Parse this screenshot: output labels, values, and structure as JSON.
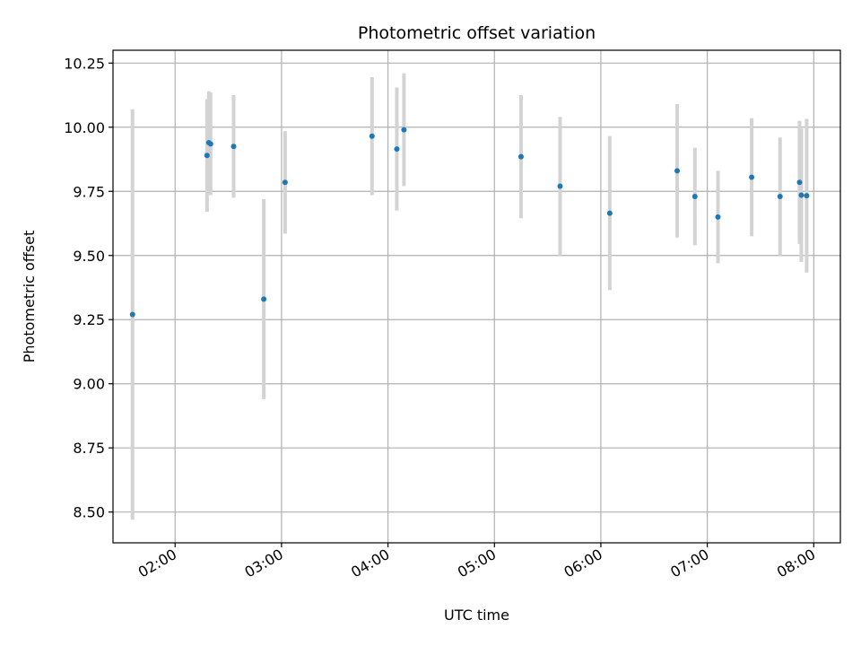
{
  "chart_data": {
    "type": "scatter",
    "title": "Photometric offset variation",
    "xlabel": "UTC time",
    "ylabel": "Photometric offset",
    "x_ticks": [
      "02:00",
      "03:00",
      "04:00",
      "05:00",
      "06:00",
      "07:00",
      "08:00"
    ],
    "y_ticks": [
      "8.50",
      "8.75",
      "9.00",
      "9.25",
      "9.50",
      "9.75",
      "10.00",
      "10.25"
    ],
    "xlim": [
      "01:25",
      "08:15"
    ],
    "ylim": [
      8.38,
      10.3
    ],
    "grid": true,
    "colors": {
      "points": "#1f77b4",
      "error_bars": "#d3d3d3",
      "grid": "#b0b0b0"
    },
    "series": [
      {
        "points": [
          {
            "x": "01:36",
            "y": 9.27,
            "err": 0.8
          },
          {
            "x": "02:18",
            "y": 9.89,
            "err": 0.22
          },
          {
            "x": "02:19",
            "y": 9.94,
            "err": 0.2
          },
          {
            "x": "02:20",
            "y": 9.935,
            "err": 0.2
          },
          {
            "x": "02:33",
            "y": 9.925,
            "err": 0.2
          },
          {
            "x": "02:50",
            "y": 9.33,
            "err": 0.39
          },
          {
            "x": "03:02",
            "y": 9.785,
            "err": 0.2
          },
          {
            "x": "03:51",
            "y": 9.965,
            "err": 0.23
          },
          {
            "x": "04:05",
            "y": 9.915,
            "err": 0.24
          },
          {
            "x": "04:09",
            "y": 9.99,
            "err": 0.22
          },
          {
            "x": "05:15",
            "y": 9.885,
            "err": 0.24
          },
          {
            "x": "05:37",
            "y": 9.77,
            "err": 0.27
          },
          {
            "x": "06:05",
            "y": 9.665,
            "err": 0.3
          },
          {
            "x": "06:43",
            "y": 9.83,
            "err": 0.26
          },
          {
            "x": "06:53",
            "y": 9.73,
            "err": 0.19
          },
          {
            "x": "07:06",
            "y": 9.65,
            "err": 0.18
          },
          {
            "x": "07:25",
            "y": 9.805,
            "err": 0.23
          },
          {
            "x": "07:41",
            "y": 9.73,
            "err": 0.23
          },
          {
            "x": "07:52",
            "y": 9.785,
            "err": 0.24
          },
          {
            "x": "07:53",
            "y": 9.735,
            "err": 0.26
          },
          {
            "x": "07:56",
            "y": 9.733,
            "err": 0.3
          }
        ]
      }
    ]
  }
}
